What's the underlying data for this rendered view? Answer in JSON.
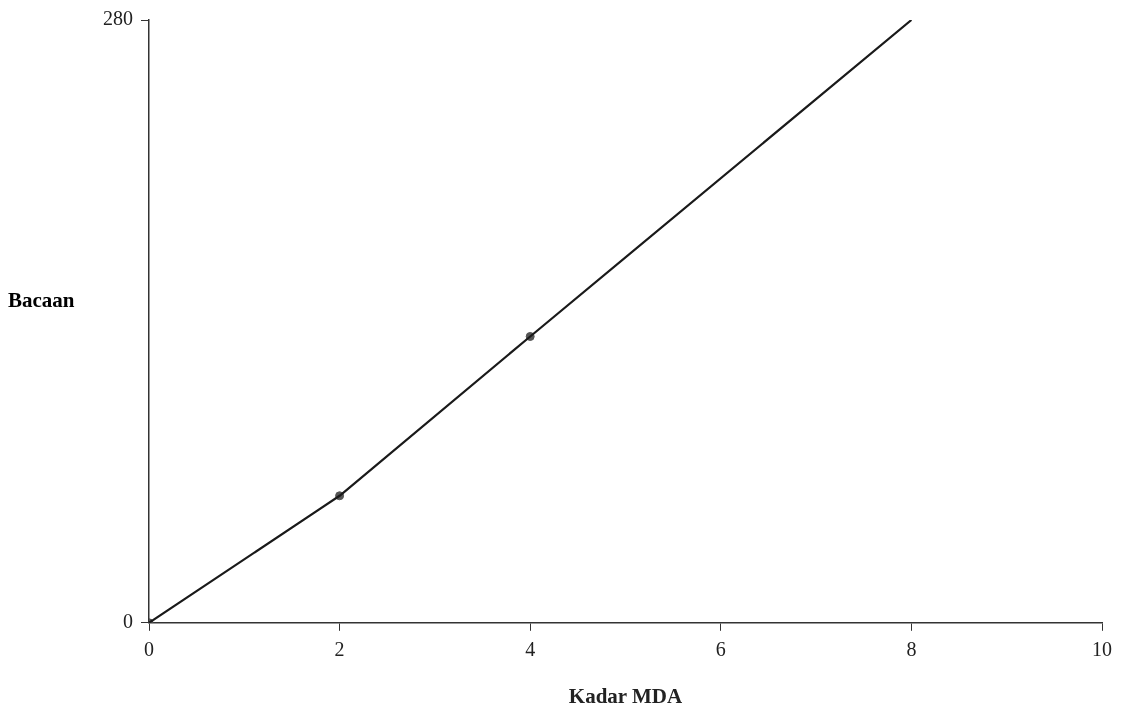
{
  "chart_data": {
    "type": "line",
    "xlabel": "Kadar MDA",
    "ylabel": "Bacaan",
    "series": [
      {
        "color": "#1a1a1a",
        "x": [
          0,
          2,
          4,
          8
        ],
        "values": [
          0,
          59,
          133,
          280
        ],
        "marker": "none"
      },
      {
        "type": "scatter",
        "color": "#555555",
        "x": [
          0,
          2,
          4
        ],
        "values": [
          0,
          59,
          133
        ],
        "marker": "circle"
      }
    ],
    "xlim": [
      0,
      10
    ],
    "xticks": [
      0,
      2,
      4,
      6,
      8,
      10
    ],
    "ylim": [
      0,
      280
    ],
    "yticks": [
      0,
      280
    ],
    "grid": false,
    "legend": false
  }
}
